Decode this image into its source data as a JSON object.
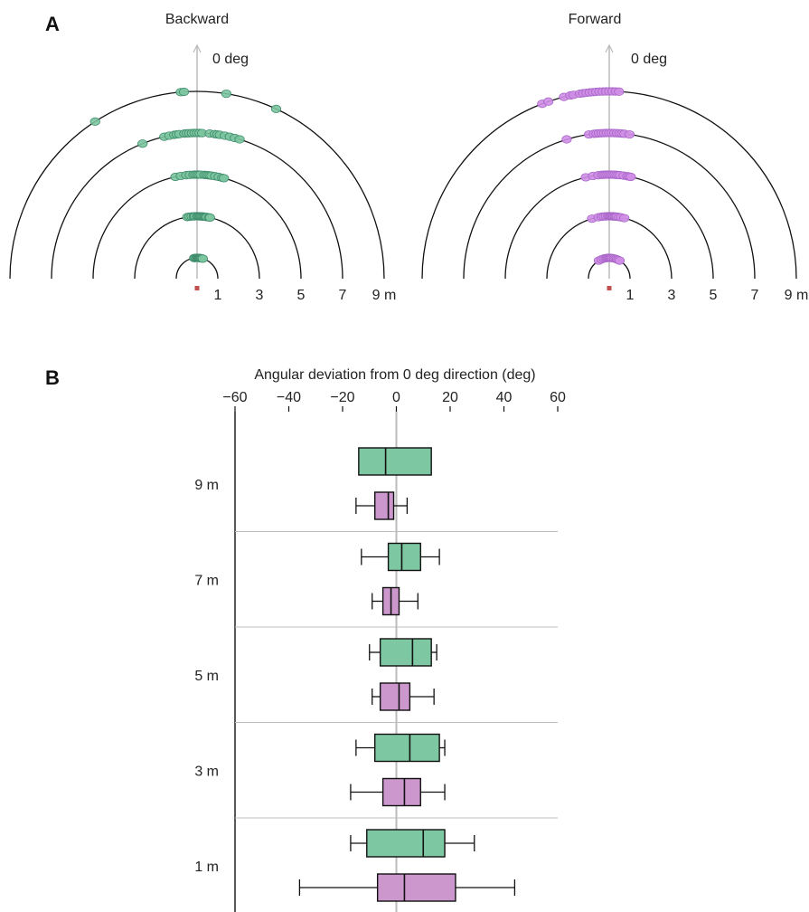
{
  "panel_labels": {
    "a": "A",
    "b": "B"
  },
  "colors": {
    "backward": "#7cc5a0",
    "backward_edge": "#3f8c6c",
    "forward": "#cf8ee6",
    "forward_edge": "#a866c8",
    "box_backward": "#7dc7a2",
    "box_forward": "#cc97cc",
    "origin_marker": "#c0504d",
    "axis_gray": "#bbbbbb"
  },
  "chart_data": [
    {
      "type": "scatter",
      "coordinate_system": "polar-half",
      "title": "Backward",
      "up_label": "0 deg",
      "radius_ticks": [
        "1",
        "3",
        "5",
        "7",
        "9 m"
      ],
      "rings_m": [
        1,
        3,
        5,
        7,
        9
      ],
      "radius_unit": "m",
      "angle_range_deg": [
        -90,
        90
      ],
      "series": [
        {
          "name": "",
          "points_by_distance": {
            "1": [
              -8,
              -5,
              -2,
              1,
              3,
              5,
              7,
              9,
              11,
              13,
              16
            ],
            "3": [
              -9,
              -7,
              -5,
              -3,
              -2,
              0,
              1,
              2,
              3,
              4,
              5,
              6,
              7,
              8,
              9,
              11,
              12
            ],
            "5": [
              -12,
              -9,
              -6,
              -4,
              -2,
              -1,
              0,
              1,
              2,
              4,
              5,
              6,
              7,
              8,
              10,
              12,
              14,
              15
            ],
            "7": [
              -22,
              -13,
              -11,
              -9,
              -8,
              -7,
              -5,
              -4,
              -3,
              -2,
              -1,
              0,
              1,
              2,
              5,
              7,
              8,
              9,
              11,
              13,
              15,
              17
            ],
            "9": [
              -33,
              -5,
              -4,
              9,
              25
            ]
          }
        }
      ]
    },
    {
      "type": "scatter",
      "coordinate_system": "polar-half",
      "title": "Forward",
      "up_label": "0 deg",
      "radius_ticks": [
        "1",
        "3",
        "5",
        "7",
        "9 m"
      ],
      "rings_m": [
        1,
        3,
        5,
        7,
        9
      ],
      "radius_unit": "m",
      "angle_range_deg": [
        -90,
        90
      ],
      "series": [
        {
          "name": "",
          "points_by_distance": {
            "1": [
              -30,
              -22,
              -15,
              -10,
              -6,
              -3,
              0,
              3,
              6,
              10,
              14,
              18,
              22,
              26,
              30
            ],
            "3": [
              -16,
              -10,
              -7,
              -5,
              -3,
              -1,
              0,
              1,
              2,
              3,
              4,
              5,
              6,
              7,
              9,
              11,
              14
            ],
            "5": [
              -13,
              -9,
              -6,
              -4,
              -3,
              -2,
              -1,
              0,
              1,
              2,
              3,
              4,
              5,
              6,
              8,
              10,
              11,
              12
            ],
            "7": [
              -17,
              -8,
              -6,
              -5,
              -4,
              -3,
              -2,
              -1,
              0,
              1,
              2,
              3,
              4,
              5,
              6,
              8
            ],
            "9": [
              -21,
              -19,
              -14,
              -12,
              -11,
              -9,
              -8,
              -7,
              -6,
              -5,
              -4,
              -3,
              -2,
              -1,
              0,
              1,
              2,
              3
            ]
          }
        }
      ]
    },
    {
      "type": "boxplot",
      "title": "",
      "xlabel": "Angular deviation from 0 deg direction (deg)",
      "xlim": [
        -60,
        60
      ],
      "xticks": [
        -60,
        -40,
        -20,
        0,
        20,
        40,
        60
      ],
      "xtick_labels": [
        "−60",
        "−40",
        "−20",
        "0",
        "20",
        "40",
        "60"
      ],
      "categories": [
        "9 m",
        "7 m",
        "5 m",
        "3 m",
        "1 m"
      ],
      "series": [
        {
          "name": "",
          "color_key": "box_backward",
          "boxes": [
            {
              "category": "9 m",
              "q1": -14,
              "median": -4,
              "q3": 13,
              "whisker_low": null,
              "whisker_high": null
            },
            {
              "category": "7 m",
              "q1": -3,
              "median": 2,
              "q3": 9,
              "whisker_low": -13,
              "whisker_high": 16
            },
            {
              "category": "5 m",
              "q1": -6,
              "median": 6,
              "q3": 13,
              "whisker_low": -10,
              "whisker_high": 15
            },
            {
              "category": "3 m",
              "q1": -8,
              "median": 5,
              "q3": 16,
              "whisker_low": -15,
              "whisker_high": 18
            },
            {
              "category": "1 m",
              "q1": -11,
              "median": 10,
              "q3": 18,
              "whisker_low": -17,
              "whisker_high": 29
            }
          ]
        },
        {
          "name": "",
          "color_key": "box_forward",
          "boxes": [
            {
              "category": "9 m",
              "q1": -8,
              "median": -3,
              "q3": -1,
              "whisker_low": -15,
              "whisker_high": 4
            },
            {
              "category": "7 m",
              "q1": -5,
              "median": -2,
              "q3": 1,
              "whisker_low": -9,
              "whisker_high": 8
            },
            {
              "category": "5 m",
              "q1": -6,
              "median": 1,
              "q3": 5,
              "whisker_low": -9,
              "whisker_high": 14
            },
            {
              "category": "3 m",
              "q1": -5,
              "median": 3,
              "q3": 9,
              "whisker_low": -17,
              "whisker_high": 18
            },
            {
              "category": "1 m",
              "q1": -7,
              "median": 3,
              "q3": 22,
              "whisker_low": -36,
              "whisker_high": 44
            }
          ]
        }
      ]
    }
  ]
}
